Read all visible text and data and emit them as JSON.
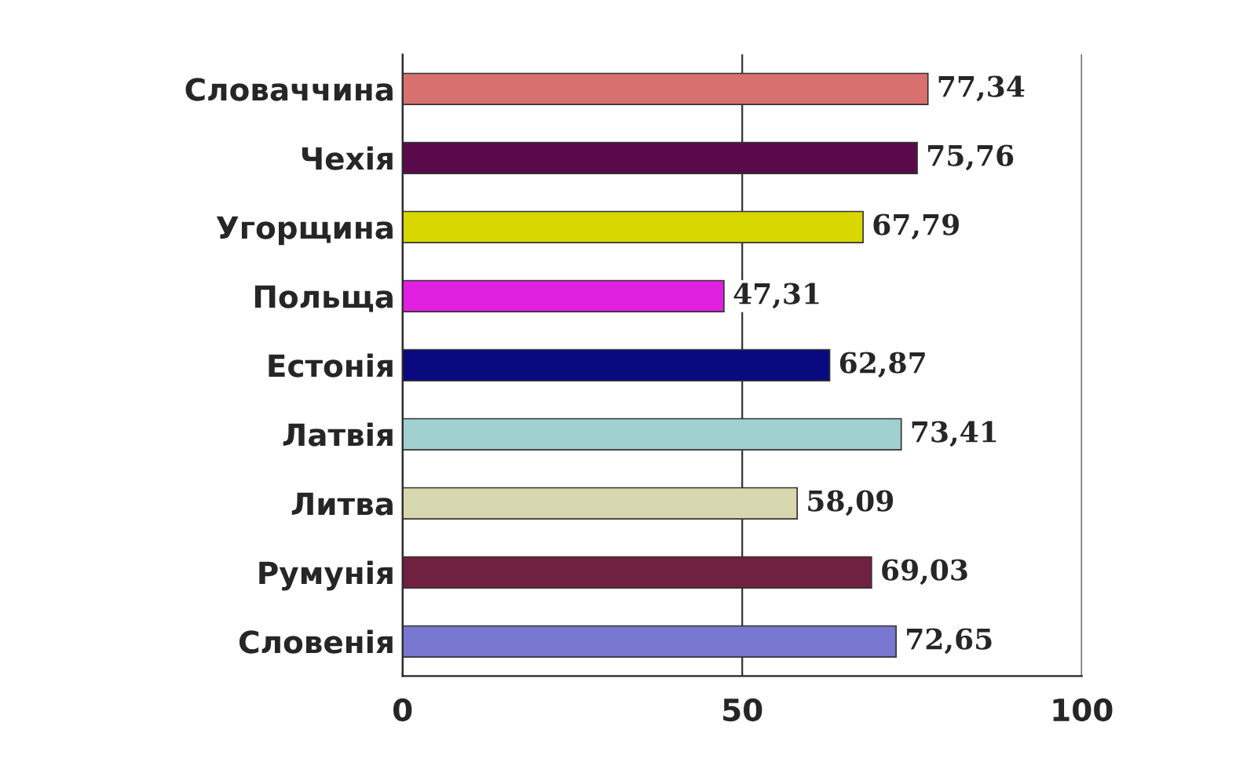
{
  "chart_data": {
    "type": "bar",
    "orientation": "horizontal",
    "categories": [
      "Словаччина",
      "Чехія",
      "Угорщина",
      "Польща",
      "Естонія",
      "Латвія",
      "Литва",
      "Румунія",
      "Словенія"
    ],
    "values": [
      77.34,
      75.76,
      67.79,
      47.31,
      62.87,
      73.41,
      58.09,
      69.03,
      72.65
    ],
    "value_labels": [
      "77,34",
      "75,76",
      "67,79",
      "47,31",
      "62,87",
      "73,41",
      "58,09",
      "69,03",
      "72,65"
    ],
    "colors": [
      "#d87070",
      "#5a0a4a",
      "#d8d800",
      "#e020e0",
      "#0a0a80",
      "#a0d0d0",
      "#d8d8b0",
      "#702040",
      "#7878d0"
    ],
    "xlim": [
      0,
      100
    ],
    "xticks": [
      0,
      50,
      100
    ],
    "grid": "x",
    "legend": false
  }
}
